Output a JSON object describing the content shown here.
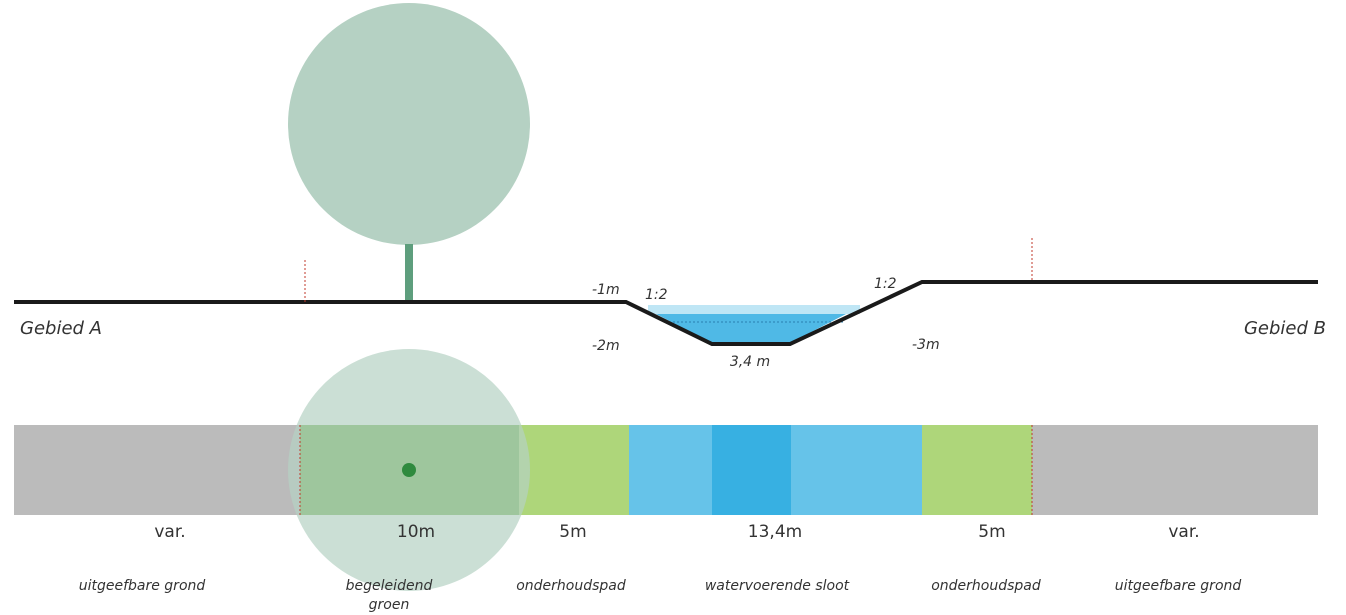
{
  "profile": {
    "left_area": "Gebied A",
    "right_area": "Gebied B",
    "levels": [
      "-1m",
      "-2m",
      "-3m"
    ],
    "slopes": [
      "1:2",
      "1:2"
    ],
    "bottom_width": "3,4 m"
  },
  "strips": [
    {
      "width": "var.",
      "label": [
        "uitgeefbare grond"
      ]
    },
    {
      "width": "10m",
      "label": [
        "begeleidend",
        "groen"
      ]
    },
    {
      "width": "5m",
      "label": [
        "onderhoudspad"
      ]
    },
    {
      "width": "13,4m",
      "label": [
        "watervoerende sloot"
      ]
    },
    {
      "width": "5m",
      "label": [
        "onderhoudspad"
      ]
    },
    {
      "width": "var.",
      "label": [
        "uitgeefbare grond"
      ]
    }
  ]
}
